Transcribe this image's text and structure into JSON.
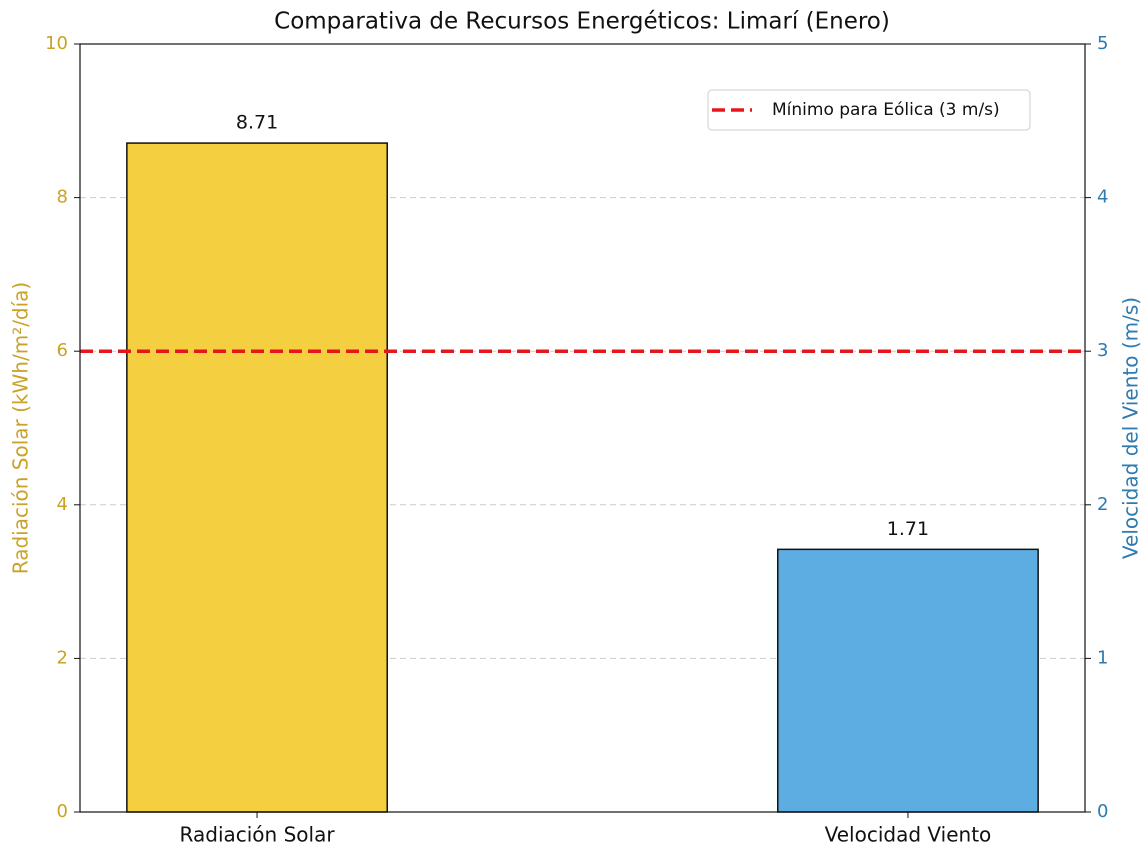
{
  "chart_data": {
    "type": "bar",
    "title": "Comparativa de Recursos Energéticos: Limarí (Enero)",
    "categories": [
      "Radiación Solar",
      "Velocidad Viento"
    ],
    "values": [
      8.71,
      1.71
    ],
    "axes": [
      "y",
      "y2"
    ],
    "colors": [
      "#f4cf3f",
      "#5dade2"
    ],
    "ylabel": "Radiación Solar (kWh/m²/día)",
    "y2label": "Velocidad del Viento (m/s)",
    "ylabel_color": "#c9a227",
    "y2label_color": "#2e7bb0",
    "ylim": [
      0,
      10
    ],
    "yticks": [
      0,
      2,
      4,
      6,
      8,
      10
    ],
    "y2lim": [
      0,
      5
    ],
    "y2ticks": [
      0,
      1,
      2,
      3,
      4,
      5
    ],
    "grid": true,
    "hline": {
      "value": 3,
      "axis": "y2",
      "label": "Mínimo para Eólica (3 m/s)",
      "color": "#e8161b"
    },
    "legend": "upper right"
  }
}
